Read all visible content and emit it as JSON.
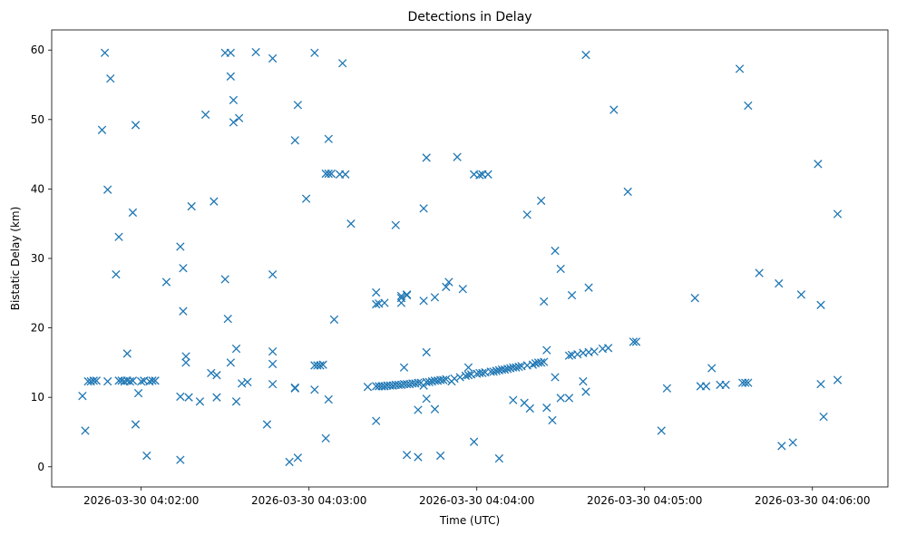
{
  "chart_data": {
    "type": "scatter",
    "title": "Detections in Delay",
    "xlabel": "Time (UTC)",
    "ylabel": "Bistatic Delay (km)",
    "marker": "x",
    "color": "#1f77b4",
    "grid": false,
    "x_unit": "timestamp (UTC)",
    "xlim": [
      "2026-03-30 04:01:28",
      "2026-03-30 04:06:27"
    ],
    "ylim": [
      -2.9,
      62.9
    ],
    "x_ticks": [
      "2026-03-30 04:02:00",
      "2026-03-30 04:03:00",
      "2026-03-30 04:04:00",
      "2026-03-30 04:05:00",
      "2026-03-30 04:06:00"
    ],
    "y_ticks": [
      0,
      10,
      20,
      30,
      40,
      50,
      60
    ],
    "points": [
      [
        "2026-03-30 04:01:39",
        10.2
      ],
      [
        "2026-03-30 04:01:40",
        5.2
      ],
      [
        "2026-03-30 04:01:41",
        12.3
      ],
      [
        "2026-03-30 04:01:42",
        12.3
      ],
      [
        "2026-03-30 04:01:43",
        12.4
      ],
      [
        "2026-03-30 04:01:44",
        12.4
      ],
      [
        "2026-03-30 04:01:46",
        48.5
      ],
      [
        "2026-03-30 04:01:47",
        59.6
      ],
      [
        "2026-03-30 04:01:48",
        12.3
      ],
      [
        "2026-03-30 04:01:48",
        39.9
      ],
      [
        "2026-03-30 04:01:49",
        55.9
      ],
      [
        "2026-03-30 04:01:51",
        27.7
      ],
      [
        "2026-03-30 04:01:52",
        33.1
      ],
      [
        "2026-03-30 04:01:52",
        12.4
      ],
      [
        "2026-03-30 04:01:53",
        12.4
      ],
      [
        "2026-03-30 04:01:54",
        12.3
      ],
      [
        "2026-03-30 04:01:55",
        16.3
      ],
      [
        "2026-03-30 04:01:55",
        12.4
      ],
      [
        "2026-03-30 04:01:56",
        12.3
      ],
      [
        "2026-03-30 04:01:57",
        12.4
      ],
      [
        "2026-03-30 04:01:57",
        36.6
      ],
      [
        "2026-03-30 04:01:58",
        49.2
      ],
      [
        "2026-03-30 04:01:58",
        6.1
      ],
      [
        "2026-03-30 04:01:59",
        10.6
      ],
      [
        "2026-03-30 04:02:00",
        12.3
      ],
      [
        "2026-03-30 04:02:01",
        12.4
      ],
      [
        "2026-03-30 04:02:02",
        1.6
      ],
      [
        "2026-03-30 04:02:03",
        12.3
      ],
      [
        "2026-03-30 04:02:04",
        12.4
      ],
      [
        "2026-03-30 04:02:05",
        12.4
      ],
      [
        "2026-03-30 04:02:09",
        26.6
      ],
      [
        "2026-03-30 04:02:14",
        31.7
      ],
      [
        "2026-03-30 04:02:14",
        1.0
      ],
      [
        "2026-03-30 04:02:14",
        10.1
      ],
      [
        "2026-03-30 04:02:15",
        28.6
      ],
      [
        "2026-03-30 04:02:15",
        22.4
      ],
      [
        "2026-03-30 04:02:16",
        15.0
      ],
      [
        "2026-03-30 04:02:16",
        15.9
      ],
      [
        "2026-03-30 04:02:17",
        10.0
      ],
      [
        "2026-03-30 04:02:18",
        37.5
      ],
      [
        "2026-03-30 04:02:21",
        9.4
      ],
      [
        "2026-03-30 04:02:23",
        50.7
      ],
      [
        "2026-03-30 04:02:25",
        13.5
      ],
      [
        "2026-03-30 04:02:26",
        38.2
      ],
      [
        "2026-03-30 04:02:27",
        10.0
      ],
      [
        "2026-03-30 04:02:27",
        13.2
      ],
      [
        "2026-03-30 04:02:30",
        59.6
      ],
      [
        "2026-03-30 04:02:30",
        27.0
      ],
      [
        "2026-03-30 04:02:31",
        21.3
      ],
      [
        "2026-03-30 04:02:32",
        59.6
      ],
      [
        "2026-03-30 04:02:32",
        56.2
      ],
      [
        "2026-03-30 04:02:32",
        15.0
      ],
      [
        "2026-03-30 04:02:33",
        52.8
      ],
      [
        "2026-03-30 04:02:33",
        49.6
      ],
      [
        "2026-03-30 04:02:34",
        17.0
      ],
      [
        "2026-03-30 04:02:34",
        9.4
      ],
      [
        "2026-03-30 04:02:35",
        50.2
      ],
      [
        "2026-03-30 04:02:36",
        12.0
      ],
      [
        "2026-03-30 04:02:38",
        12.2
      ],
      [
        "2026-03-30 04:02:41",
        59.7
      ],
      [
        "2026-03-30 04:02:45",
        6.1
      ],
      [
        "2026-03-30 04:02:47",
        58.8
      ],
      [
        "2026-03-30 04:02:47",
        27.7
      ],
      [
        "2026-03-30 04:02:47",
        16.6
      ],
      [
        "2026-03-30 04:02:47",
        14.8
      ],
      [
        "2026-03-30 04:02:47",
        11.9
      ],
      [
        "2026-03-30 04:02:53",
        0.7
      ],
      [
        "2026-03-30 04:02:55",
        11.4
      ],
      [
        "2026-03-30 04:02:55",
        11.3
      ],
      [
        "2026-03-30 04:02:55",
        47.0
      ],
      [
        "2026-03-30 04:02:56",
        1.3
      ],
      [
        "2026-03-30 04:02:56",
        52.1
      ],
      [
        "2026-03-30 04:02:59",
        38.6
      ],
      [
        "2026-03-30 04:03:02",
        59.6
      ],
      [
        "2026-03-30 04:03:02",
        14.6
      ],
      [
        "2026-03-30 04:03:02",
        11.1
      ],
      [
        "2026-03-30 04:03:03",
        14.6
      ],
      [
        "2026-03-30 04:03:04",
        14.6
      ],
      [
        "2026-03-30 04:03:05",
        14.7
      ],
      [
        "2026-03-30 04:03:06",
        4.1
      ],
      [
        "2026-03-30 04:03:06",
        42.2
      ],
      [
        "2026-03-30 04:03:07",
        47.2
      ],
      [
        "2026-03-30 04:03:07",
        42.2
      ],
      [
        "2026-03-30 04:03:07",
        9.7
      ],
      [
        "2026-03-30 04:03:08",
        42.2
      ],
      [
        "2026-03-30 04:03:09",
        21.2
      ],
      [
        "2026-03-30 04:03:11",
        42.1
      ],
      [
        "2026-03-30 04:03:12",
        58.1
      ],
      [
        "2026-03-30 04:03:13",
        42.1
      ],
      [
        "2026-03-30 04:03:15",
        35.0
      ],
      [
        "2026-03-30 04:03:21",
        11.5
      ],
      [
        "2026-03-30 04:03:24",
        6.6
      ],
      [
        "2026-03-30 04:03:24",
        23.4
      ],
      [
        "2026-03-30 04:03:24",
        25.1
      ],
      [
        "2026-03-30 04:03:24",
        11.6
      ],
      [
        "2026-03-30 04:03:25",
        23.5
      ],
      [
        "2026-03-30 04:03:25",
        11.6
      ],
      [
        "2026-03-30 04:03:26",
        11.6
      ],
      [
        "2026-03-30 04:03:27",
        11.6
      ],
      [
        "2026-03-30 04:03:27",
        23.6
      ],
      [
        "2026-03-30 04:03:28",
        11.7
      ],
      [
        "2026-03-30 04:03:29",
        11.7
      ],
      [
        "2026-03-30 04:03:30",
        11.7
      ],
      [
        "2026-03-30 04:03:31",
        34.8
      ],
      [
        "2026-03-30 04:03:31",
        11.8
      ],
      [
        "2026-03-30 04:03:32",
        11.8
      ],
      [
        "2026-03-30 04:03:33",
        24.6
      ],
      [
        "2026-03-30 04:03:33",
        23.6
      ],
      [
        "2026-03-30 04:03:33",
        24.3
      ],
      [
        "2026-03-30 04:03:33",
        11.8
      ],
      [
        "2026-03-30 04:03:34",
        14.3
      ],
      [
        "2026-03-30 04:03:34",
        11.9
      ],
      [
        "2026-03-30 04:03:35",
        24.8
      ],
      [
        "2026-03-30 04:03:35",
        1.7
      ],
      [
        "2026-03-30 04:03:35",
        11.9
      ],
      [
        "2026-03-30 04:03:35",
        24.7
      ],
      [
        "2026-03-30 04:03:36",
        11.9
      ],
      [
        "2026-03-30 04:03:37",
        12.0
      ],
      [
        "2026-03-30 04:03:38",
        12.0
      ],
      [
        "2026-03-30 04:03:39",
        1.4
      ],
      [
        "2026-03-30 04:03:39",
        12.1
      ],
      [
        "2026-03-30 04:03:39",
        8.2
      ],
      [
        "2026-03-30 04:03:40",
        12.1
      ],
      [
        "2026-03-30 04:03:41",
        37.2
      ],
      [
        "2026-03-30 04:03:41",
        23.9
      ],
      [
        "2026-03-30 04:03:41",
        11.7
      ],
      [
        "2026-03-30 04:03:42",
        44.5
      ],
      [
        "2026-03-30 04:03:42",
        16.5
      ],
      [
        "2026-03-30 04:03:42",
        12.2
      ],
      [
        "2026-03-30 04:03:42",
        9.8
      ],
      [
        "2026-03-30 04:03:43",
        12.2
      ],
      [
        "2026-03-30 04:03:44",
        12.3
      ],
      [
        "2026-03-30 04:03:45",
        8.3
      ],
      [
        "2026-03-30 04:03:45",
        24.4
      ],
      [
        "2026-03-30 04:03:45",
        12.4
      ],
      [
        "2026-03-30 04:03:46",
        12.4
      ],
      [
        "2026-03-30 04:03:47",
        1.6
      ],
      [
        "2026-03-30 04:03:47",
        12.5
      ],
      [
        "2026-03-30 04:03:48",
        12.5
      ],
      [
        "2026-03-30 04:03:49",
        25.9
      ],
      [
        "2026-03-30 04:03:49",
        12.6
      ],
      [
        "2026-03-30 04:03:50",
        26.6
      ],
      [
        "2026-03-30 04:03:51",
        12.3
      ],
      [
        "2026-03-30 04:03:52",
        12.7
      ],
      [
        "2026-03-30 04:03:53",
        44.6
      ],
      [
        "2026-03-30 04:03:54",
        12.9
      ],
      [
        "2026-03-30 04:03:55",
        25.6
      ],
      [
        "2026-03-30 04:03:56",
        13.1
      ],
      [
        "2026-03-30 04:03:57",
        14.3
      ],
      [
        "2026-03-30 04:03:57",
        13.2
      ],
      [
        "2026-03-30 04:03:58",
        13.3
      ],
      [
        "2026-03-30 04:03:59",
        42.1
      ],
      [
        "2026-03-30 04:03:59",
        3.6
      ],
      [
        "2026-03-30 04:04:00",
        13.4
      ],
      [
        "2026-03-30 04:04:01",
        42.0
      ],
      [
        "2026-03-30 04:04:01",
        13.5
      ],
      [
        "2026-03-30 04:04:02",
        42.1
      ],
      [
        "2026-03-30 04:04:02",
        13.5
      ],
      [
        "2026-03-30 04:04:03",
        13.6
      ],
      [
        "2026-03-30 04:04:04",
        42.1
      ],
      [
        "2026-03-30 04:04:05",
        13.7
      ],
      [
        "2026-03-30 04:04:06",
        13.7
      ],
      [
        "2026-03-30 04:04:07",
        13.8
      ],
      [
        "2026-03-30 04:04:08",
        1.2
      ],
      [
        "2026-03-30 04:04:08",
        13.9
      ],
      [
        "2026-03-30 04:04:09",
        14.0
      ],
      [
        "2026-03-30 04:04:10",
        14.0
      ],
      [
        "2026-03-30 04:04:11",
        14.1
      ],
      [
        "2026-03-30 04:04:12",
        14.2
      ],
      [
        "2026-03-30 04:04:13",
        9.6
      ],
      [
        "2026-03-30 04:04:13",
        14.3
      ],
      [
        "2026-03-30 04:04:14",
        14.3
      ],
      [
        "2026-03-30 04:04:15",
        14.4
      ],
      [
        "2026-03-30 04:04:16",
        14.5
      ],
      [
        "2026-03-30 04:04:17",
        9.2
      ],
      [
        "2026-03-30 04:04:18",
        36.3
      ],
      [
        "2026-03-30 04:04:18",
        14.6
      ],
      [
        "2026-03-30 04:04:19",
        8.4
      ],
      [
        "2026-03-30 04:04:20",
        14.7
      ],
      [
        "2026-03-30 04:04:21",
        14.9
      ],
      [
        "2026-03-30 04:04:22",
        15.0
      ],
      [
        "2026-03-30 04:04:23",
        15.0
      ],
      [
        "2026-03-30 04:04:23",
        38.3
      ],
      [
        "2026-03-30 04:04:24",
        23.8
      ],
      [
        "2026-03-30 04:04:24",
        15.1
      ],
      [
        "2026-03-30 04:04:25",
        8.5
      ],
      [
        "2026-03-30 04:04:25",
        16.8
      ],
      [
        "2026-03-30 04:04:27",
        6.7
      ],
      [
        "2026-03-30 04:04:28",
        31.1
      ],
      [
        "2026-03-30 04:04:28",
        12.9
      ],
      [
        "2026-03-30 04:04:30",
        28.5
      ],
      [
        "2026-03-30 04:04:30",
        9.9
      ],
      [
        "2026-03-30 04:04:33",
        9.9
      ],
      [
        "2026-03-30 04:04:33",
        16.0
      ],
      [
        "2026-03-30 04:04:34",
        24.7
      ],
      [
        "2026-03-30 04:04:34",
        16.1
      ],
      [
        "2026-03-30 04:04:36",
        16.2
      ],
      [
        "2026-03-30 04:04:38",
        16.4
      ],
      [
        "2026-03-30 04:04:38",
        12.3
      ],
      [
        "2026-03-30 04:04:39",
        59.3
      ],
      [
        "2026-03-30 04:04:39",
        10.8
      ],
      [
        "2026-03-30 04:04:40",
        25.8
      ],
      [
        "2026-03-30 04:04:40",
        16.5
      ],
      [
        "2026-03-30 04:04:42",
        16.6
      ],
      [
        "2026-03-30 04:04:45",
        17.0
      ],
      [
        "2026-03-30 04:04:47",
        17.1
      ],
      [
        "2026-03-30 04:04:49",
        51.4
      ],
      [
        "2026-03-30 04:04:54",
        39.6
      ],
      [
        "2026-03-30 04:04:56",
        18.0
      ],
      [
        "2026-03-30 04:04:57",
        18.0
      ],
      [
        "2026-03-30 04:05:06",
        5.2
      ],
      [
        "2026-03-30 04:05:08",
        11.3
      ],
      [
        "2026-03-30 04:05:18",
        24.3
      ],
      [
        "2026-03-30 04:05:20",
        11.6
      ],
      [
        "2026-03-30 04:05:22",
        11.6
      ],
      [
        "2026-03-30 04:05:24",
        14.2
      ],
      [
        "2026-03-30 04:05:27",
        11.8
      ],
      [
        "2026-03-30 04:05:29",
        11.8
      ],
      [
        "2026-03-30 04:05:34",
        57.3
      ],
      [
        "2026-03-30 04:05:35",
        12.1
      ],
      [
        "2026-03-30 04:05:36",
        12.1
      ],
      [
        "2026-03-30 04:05:37",
        52.0
      ],
      [
        "2026-03-30 04:05:37",
        12.1
      ],
      [
        "2026-03-30 04:05:41",
        27.9
      ],
      [
        "2026-03-30 04:05:48",
        26.4
      ],
      [
        "2026-03-30 04:05:49",
        3.0
      ],
      [
        "2026-03-30 04:05:53",
        3.5
      ],
      [
        "2026-03-30 04:05:56",
        24.8
      ],
      [
        "2026-03-30 04:06:02",
        43.6
      ],
      [
        "2026-03-30 04:06:03",
        11.9
      ],
      [
        "2026-03-30 04:06:03",
        23.3
      ],
      [
        "2026-03-30 04:06:04",
        7.2
      ],
      [
        "2026-03-30 04:06:09",
        36.4
      ],
      [
        "2026-03-30 04:06:09",
        12.5
      ]
    ]
  }
}
